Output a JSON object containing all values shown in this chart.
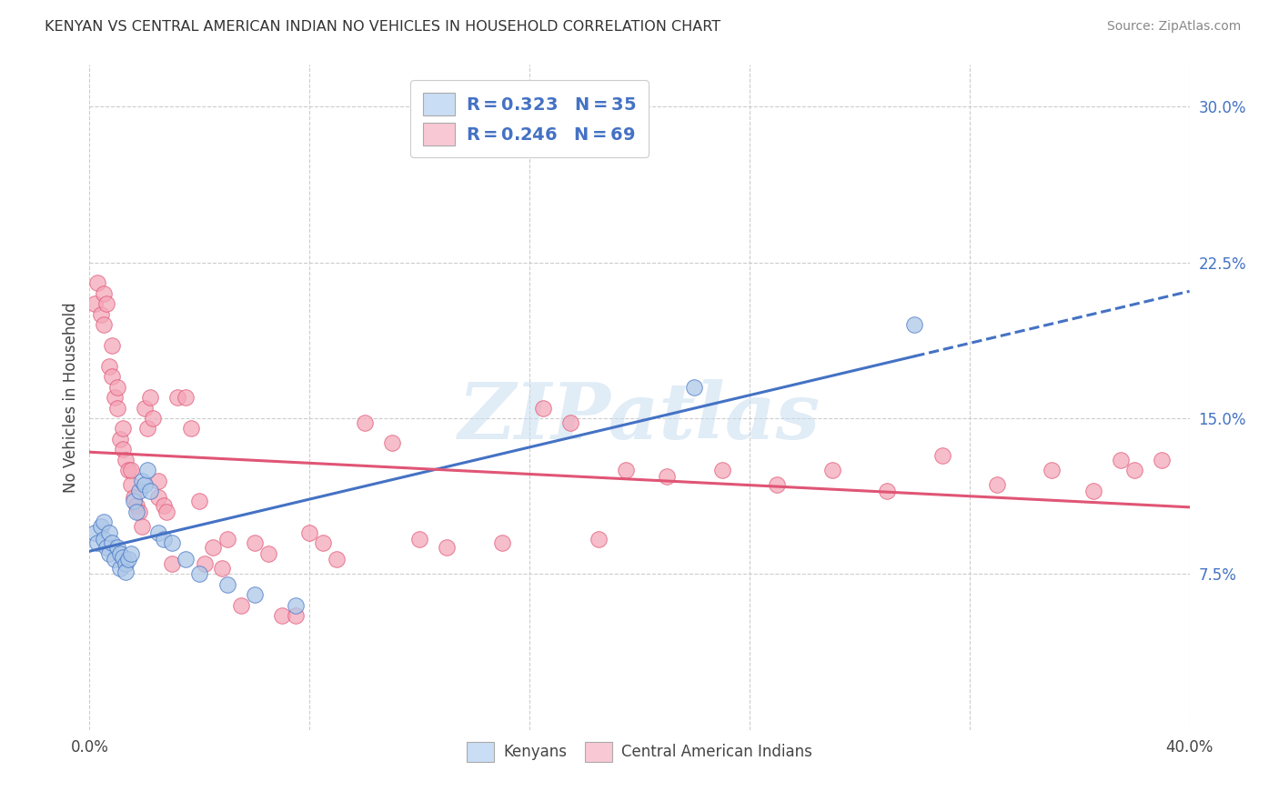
{
  "title": "KENYAN VS CENTRAL AMERICAN INDIAN NO VEHICLES IN HOUSEHOLD CORRELATION CHART",
  "source": "Source: ZipAtlas.com",
  "ylabel": "No Vehicles in Household",
  "xlim": [
    0.0,
    0.4
  ],
  "ylim": [
    0.0,
    0.32
  ],
  "xticks": [
    0.0,
    0.08,
    0.16,
    0.24,
    0.32,
    0.4
  ],
  "xticklabels": [
    "0.0%",
    "",
    "",
    "",
    "",
    "40.0%"
  ],
  "yticks_right": [
    0.075,
    0.15,
    0.225,
    0.3
  ],
  "ytick_right_labels": [
    "7.5%",
    "15.0%",
    "22.5%",
    "30.0%"
  ],
  "kenyan_color": "#adc8e8",
  "kenyan_line_color": "#4472c4",
  "central_american_color": "#f4a7b9",
  "central_american_line_color": "#e05575",
  "kenyan_scatter_x": [
    0.002,
    0.003,
    0.004,
    0.005,
    0.005,
    0.006,
    0.007,
    0.007,
    0.008,
    0.009,
    0.01,
    0.011,
    0.011,
    0.012,
    0.013,
    0.013,
    0.014,
    0.015,
    0.016,
    0.017,
    0.018,
    0.019,
    0.02,
    0.021,
    0.022,
    0.025,
    0.027,
    0.03,
    0.035,
    0.04,
    0.05,
    0.06,
    0.075,
    0.22,
    0.3
  ],
  "kenyan_scatter_y": [
    0.095,
    0.09,
    0.098,
    0.1,
    0.092,
    0.088,
    0.095,
    0.085,
    0.09,
    0.082,
    0.088,
    0.085,
    0.078,
    0.083,
    0.08,
    0.076,
    0.082,
    0.085,
    0.11,
    0.105,
    0.115,
    0.12,
    0.118,
    0.125,
    0.115,
    0.095,
    0.092,
    0.09,
    0.082,
    0.075,
    0.07,
    0.065,
    0.06,
    0.165,
    0.195
  ],
  "central_american_scatter_x": [
    0.002,
    0.003,
    0.004,
    0.005,
    0.005,
    0.006,
    0.007,
    0.008,
    0.008,
    0.009,
    0.01,
    0.01,
    0.011,
    0.012,
    0.012,
    0.013,
    0.014,
    0.015,
    0.015,
    0.016,
    0.017,
    0.018,
    0.019,
    0.02,
    0.021,
    0.022,
    0.023,
    0.025,
    0.025,
    0.027,
    0.028,
    0.03,
    0.032,
    0.035,
    0.037,
    0.04,
    0.042,
    0.045,
    0.048,
    0.05,
    0.055,
    0.06,
    0.065,
    0.07,
    0.075,
    0.08,
    0.085,
    0.09,
    0.1,
    0.11,
    0.12,
    0.13,
    0.15,
    0.165,
    0.175,
    0.185,
    0.195,
    0.21,
    0.23,
    0.25,
    0.27,
    0.29,
    0.31,
    0.33,
    0.35,
    0.365,
    0.375,
    0.38,
    0.39
  ],
  "central_american_scatter_y": [
    0.205,
    0.215,
    0.2,
    0.21,
    0.195,
    0.205,
    0.175,
    0.17,
    0.185,
    0.16,
    0.155,
    0.165,
    0.14,
    0.135,
    0.145,
    0.13,
    0.125,
    0.118,
    0.125,
    0.112,
    0.108,
    0.105,
    0.098,
    0.155,
    0.145,
    0.16,
    0.15,
    0.12,
    0.112,
    0.108,
    0.105,
    0.08,
    0.16,
    0.16,
    0.145,
    0.11,
    0.08,
    0.088,
    0.078,
    0.092,
    0.06,
    0.09,
    0.085,
    0.055,
    0.055,
    0.095,
    0.09,
    0.082,
    0.148,
    0.138,
    0.092,
    0.088,
    0.09,
    0.155,
    0.148,
    0.092,
    0.125,
    0.122,
    0.125,
    0.118,
    0.125,
    0.115,
    0.132,
    0.118,
    0.125,
    0.115,
    0.13,
    0.125,
    0.13
  ],
  "watermark_text": "ZIPatlas",
  "background_color": "#ffffff",
  "grid_color": "#cccccc",
  "legend_box_color_kenyan": "#c9ddf5",
  "legend_box_color_central": "#f9c8d5",
  "legend_text_color": "#4472c4",
  "bottom_legend_label_kenyan": "Kenyans",
  "bottom_legend_label_central": "Central American Indians"
}
